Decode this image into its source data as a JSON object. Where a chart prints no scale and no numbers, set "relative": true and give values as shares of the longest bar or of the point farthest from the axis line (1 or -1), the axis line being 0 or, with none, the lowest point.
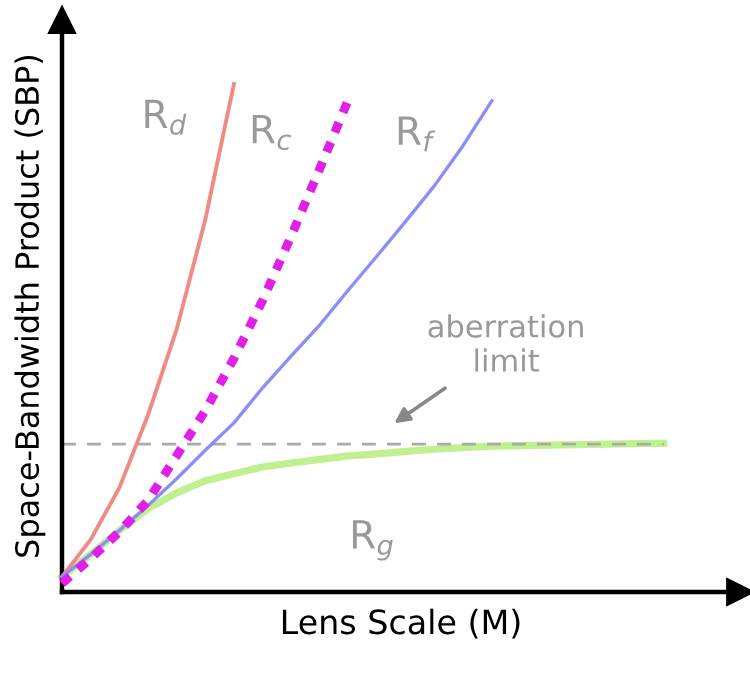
{
  "chart_data": {
    "type": "line",
    "relative": true,
    "xlabel": "Lens Scale (M)",
    "ylabel": "Space-Bandwidth Product (SBP)",
    "legend": false,
    "marker": "none",
    "categories": [
      null,
      null,
      null,
      null,
      null,
      null,
      null,
      null,
      null,
      null,
      null,
      null,
      null,
      null,
      null,
      null,
      null,
      null,
      null,
      null,
      null,
      null
    ],
    "series": [
      {
        "name": "R$_{d}$",
        "color": "#f08a84",
        "line_style": "solid",
        "values": [
          0.03,
          0.103,
          0.205,
          0.348,
          0.517,
          0.733,
          1.0,
          null,
          null,
          null,
          null,
          null,
          null,
          null,
          null,
          null,
          null,
          null,
          null,
          null,
          null,
          null
        ]
      },
      {
        "name": "R$_{c}$",
        "color": "#e020e8",
        "line_style": "dotted",
        "values": [
          0.017,
          0.066,
          0.118,
          0.18,
          0.268,
          0.357,
          0.46,
          0.574,
          0.701,
          0.834,
          0.97,
          null,
          null,
          null,
          null,
          null,
          null,
          null,
          null,
          null,
          null,
          null
        ]
      },
      {
        "name": "R$_{f}$",
        "color": "#8c8cfa",
        "line_style": "solid",
        "values": [
          0.03,
          0.074,
          0.121,
          0.17,
          0.223,
          0.279,
          0.333,
          0.402,
          0.465,
          0.526,
          0.595,
          0.662,
          0.73,
          0.8,
          0.879,
          0.967,
          null,
          null,
          null,
          null,
          null,
          null
        ]
      },
      {
        "name": "R$_{g}$",
        "color": "#c0f090",
        "line_style": "solid",
        "values": [
          0.03,
          0.074,
          0.121,
          0.164,
          0.195,
          0.219,
          0.233,
          0.246,
          0.254,
          0.261,
          0.268,
          0.272,
          0.277,
          0.281,
          0.284,
          0.287,
          0.288,
          0.289,
          0.29,
          0.291,
          0.292,
          0.293
        ]
      }
    ],
    "ref_lines": [
      {
        "axis": "y",
        "value": 0.291,
        "color": "#aaaaaa",
        "line_style": "dashed"
      }
    ],
    "annotations": [
      "aberration\nlimit"
    ]
  }
}
